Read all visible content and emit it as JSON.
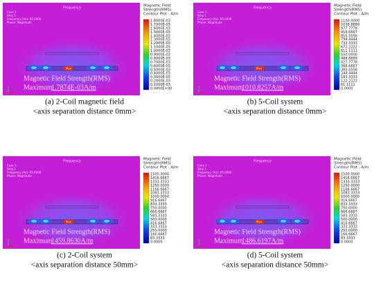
{
  "panels": [
    {
      "overlay_title": "Frequency",
      "info": [
        "Case 1",
        "Step 1",
        "Frequency (Hz): 85.0000",
        "Phase: Magnitude"
      ],
      "max_marker": "Max",
      "legend_title": [
        "Magnetic Field",
        "Strength(RMS)",
        "Contour Plot : A/m"
      ],
      "legend_ticks": [
        "1.8000E-03",
        "1.7000E-03",
        "1.6000E-03",
        "1.5000E-03",
        "1.4000E-03",
        "1.3000E-03",
        "1.2000E-03",
        "1.1000E-03",
        "1.0000E-03",
        "0.9000E-03",
        "0.8000E-03",
        "0.7000E-03",
        "0.6000E-03",
        "0.5000E-03",
        "0.4000E-03",
        "0.3000E-03",
        "0.2000E-03",
        "0.1000E-03",
        "0.0000E+00"
      ],
      "plot_label": "Magnetic Field Strength(RMS)",
      "maximum_label": "Maximum",
      "maximum_value": "1.7874E-03A/m",
      "caption": [
        "(a) 2-Coil magnetic field",
        "<axis separation distance 0mm>"
      ]
    },
    {
      "overlay_title": "Frequency",
      "info": [
        "Case 1",
        "Step 1",
        "Frequency (Hz): 85.0000",
        "Phase: Magnitude"
      ],
      "max_marker": "Max",
      "legend_title": [
        "Magnetic Field",
        "Strength(RMS)",
        "Contour Plot : A/m"
      ],
      "legend_ticks": [
        "1100.0000",
        "1038.8889",
        "977.7778",
        "916.6667",
        "855.5556",
        "794.4444",
        "733.3333",
        "672.2222",
        "611.1111",
        "550.0000",
        "488.8889",
        "427.7778",
        "366.6667",
        "305.5556",
        "244.4444",
        "183.3333",
        "122.2222",
        "61.1111",
        "0.0000"
      ],
      "plot_label": "Magnetic Field Strength(RMS)",
      "maximum_label": "Maximum",
      "maximum_value": "1010.8257A/m",
      "caption": [
        "(b) 5-Coil system",
        "<axis separation distance 0mm>"
      ]
    },
    {
      "overlay_title": "Frequency",
      "info": [
        "Case 1",
        "Step 1",
        "Frequency (Hz): 85.0000",
        "Phase: Magnitude"
      ],
      "max_marker": "Max",
      "legend_title": [
        "Magnetic Field",
        "Strength(RMS)",
        "Contour Plot : A/m"
      ],
      "legend_ticks": [
        "1500.0000",
        "1416.6667",
        "1333.3333",
        "1250.0000",
        "1166.6667",
        "1083.3333",
        "1000.0000",
        "916.6667",
        "833.3333",
        "750.0000",
        "666.6667",
        "583.3333",
        "500.0000",
        "416.6667",
        "333.3333",
        "250.0000",
        "166.6667",
        "83.3333",
        "0.0000"
      ],
      "plot_label": "Magnetic Field Strength(RMS)",
      "maximum_label": "Maximum",
      "maximum_value": "1459.8630A/m",
      "caption": [
        "(c) 2-Coil system",
        "<axis separation distance 50mm>"
      ]
    },
    {
      "overlay_title": "Frequency",
      "info": [
        "Case 1",
        "Step 1",
        "Frequency (Hz): 85.0000",
        "Phase: Magnitude"
      ],
      "max_marker": "Max",
      "legend_title": [
        "Magnetic Field",
        "Strength(RMS)",
        "Contour Plot : A/m"
      ],
      "legend_ticks": [
        "1500.0000",
        "1416.6667",
        "1333.3333",
        "1250.0000",
        "1166.6667",
        "1083.3333",
        "1000.0000",
        "916.6667",
        "833.3333",
        "750.0000",
        "666.6667",
        "583.3333",
        "500.0000",
        "416.6667",
        "333.3333",
        "250.0000",
        "166.6667",
        "83.3333",
        "0.0000"
      ],
      "plot_label": "Magnetic Field Strength(RMS)",
      "maximum_label": "Maximum",
      "maximum_value": "1486.6197A/m",
      "caption": [
        "(d) 5-Coil system",
        "<axis separation distance 50mm>"
      ]
    }
  ]
}
